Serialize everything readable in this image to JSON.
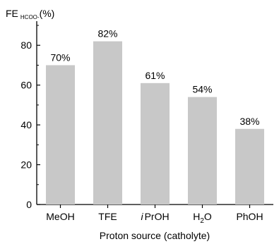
{
  "chart_data": {
    "type": "bar",
    "categories": [
      "MeOH",
      "TFE",
      "iPrOH",
      "H2O",
      "PhOH"
    ],
    "category_display": [
      {
        "main": "MeOH"
      },
      {
        "main": "TFE"
      },
      {
        "prefix": "i",
        "main": "PrOH"
      },
      {
        "main": "H",
        "sub": "2",
        "rest": "O"
      },
      {
        "main": "PhOH"
      }
    ],
    "values": [
      70,
      82,
      61,
      54,
      38
    ],
    "value_labels": [
      "70%",
      "82%",
      "61%",
      "54%",
      "38%"
    ],
    "ylabel": {
      "main": "FE",
      "sub": "HCOO-",
      "rest": "(%)"
    },
    "xlabel": "Proton source (catholyte)",
    "ylim": [
      0,
      90
    ],
    "yticks": [
      0,
      20,
      40,
      60,
      80
    ],
    "bar_color": "#c8c8c8",
    "grid": false
  }
}
